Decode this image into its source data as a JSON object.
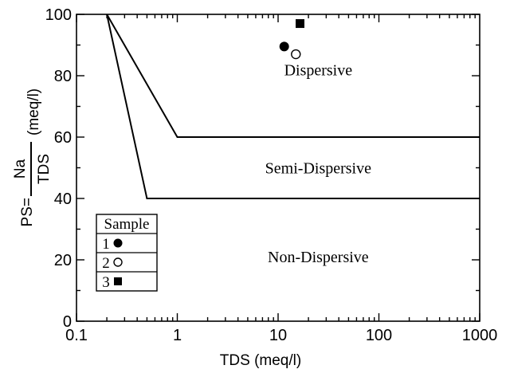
{
  "chart_data": {
    "type": "scatter",
    "xlabel": "TDS (meq/l)",
    "ylabel": {
      "prefix": "PS=",
      "numerator": "Na",
      "denominator": "TDS",
      "unit": "(meq/l)"
    },
    "x_scale": "log",
    "xlim": [
      0.1,
      1000
    ],
    "ylim": [
      0,
      100
    ],
    "x_ticks": [
      {
        "value": 0.1,
        "label": "0.1"
      },
      {
        "value": 1,
        "label": "1"
      },
      {
        "value": 10,
        "label": "10"
      },
      {
        "value": 100,
        "label": "100"
      },
      {
        "value": 1000,
        "label": "1000"
      }
    ],
    "y_ticks": [
      {
        "value": 0,
        "label": "0"
      },
      {
        "value": 20,
        "label": "20"
      },
      {
        "value": 40,
        "label": "40"
      },
      {
        "value": 60,
        "label": "60"
      },
      {
        "value": 80,
        "label": "80"
      },
      {
        "value": 100,
        "label": "100"
      }
    ],
    "grid": false,
    "boundaries": [
      {
        "points": [
          [
            0.2,
            100
          ],
          [
            1,
            60
          ],
          [
            1000,
            60
          ]
        ]
      },
      {
        "points": [
          [
            0.2,
            100
          ],
          [
            0.5,
            40
          ],
          [
            1000,
            40
          ]
        ]
      }
    ],
    "regions": [
      {
        "label": "Dispersive",
        "x": 25,
        "y": 82
      },
      {
        "label": "Semi-Dispersive",
        "x": 25,
        "y": 50
      },
      {
        "label": "Non-Dispersive",
        "x": 25,
        "y": 21
      }
    ],
    "series": [
      {
        "name": "1",
        "marker": "filled-circle",
        "points": [
          [
            11.5,
            89.5
          ]
        ]
      },
      {
        "name": "2",
        "marker": "open-circle",
        "points": [
          [
            15,
            87
          ]
        ]
      },
      {
        "name": "3",
        "marker": "filled-square",
        "points": [
          [
            16.5,
            97
          ]
        ]
      }
    ],
    "legend": {
      "title": "Sample",
      "placement": "bottom-left"
    }
  }
}
